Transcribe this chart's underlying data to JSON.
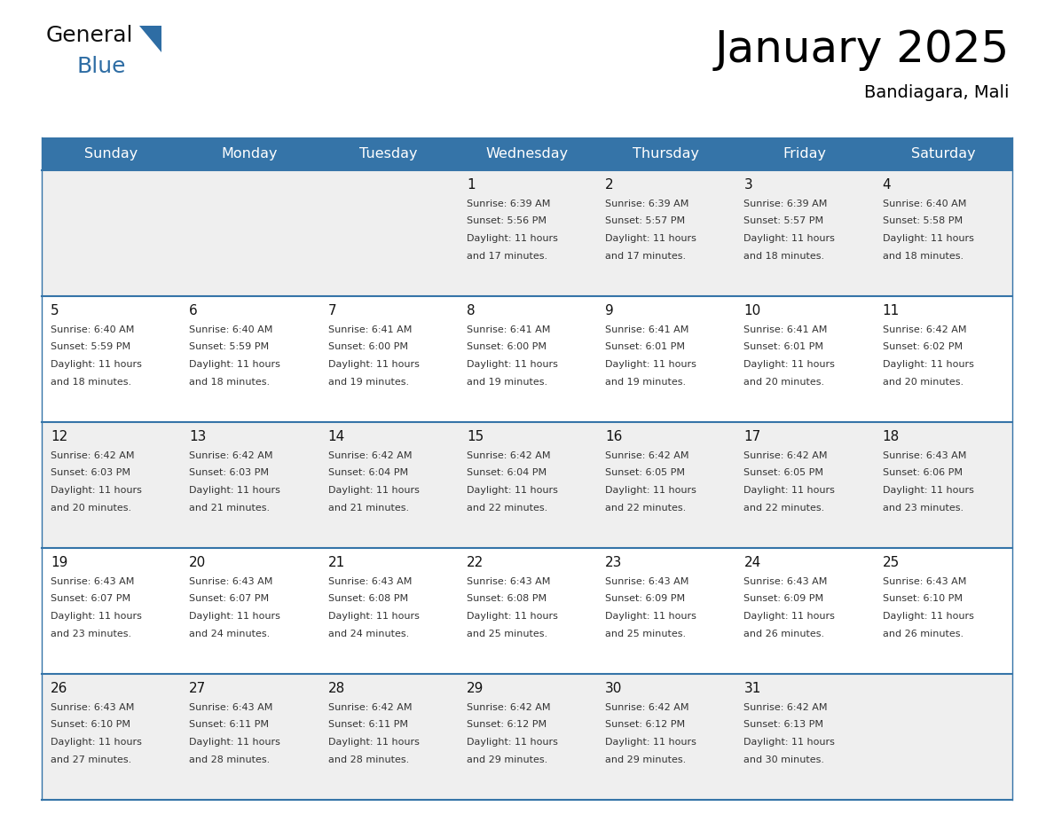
{
  "title": "January 2025",
  "subtitle": "Bandiagara, Mali",
  "header_bg": "#3574a8",
  "header_text": "#ffffff",
  "days_of_week": [
    "Sunday",
    "Monday",
    "Tuesday",
    "Wednesday",
    "Thursday",
    "Friday",
    "Saturday"
  ],
  "row_bg_odd": "#efefef",
  "row_bg_even": "#ffffff",
  "divider_color": "#3574a8",
  "text_color": "#333333",
  "day_number_color": "#111111",
  "calendar": [
    [
      {
        "day": "",
        "sunrise": "",
        "sunset": "",
        "daylight_h": "",
        "daylight_m": ""
      },
      {
        "day": "",
        "sunrise": "",
        "sunset": "",
        "daylight_h": "",
        "daylight_m": ""
      },
      {
        "day": "",
        "sunrise": "",
        "sunset": "",
        "daylight_h": "",
        "daylight_m": ""
      },
      {
        "day": "1",
        "sunrise": "6:39 AM",
        "sunset": "5:56 PM",
        "daylight_h": "11 hours",
        "daylight_m": "17 minutes"
      },
      {
        "day": "2",
        "sunrise": "6:39 AM",
        "sunset": "5:57 PM",
        "daylight_h": "11 hours",
        "daylight_m": "17 minutes"
      },
      {
        "day": "3",
        "sunrise": "6:39 AM",
        "sunset": "5:57 PM",
        "daylight_h": "11 hours",
        "daylight_m": "18 minutes"
      },
      {
        "day": "4",
        "sunrise": "6:40 AM",
        "sunset": "5:58 PM",
        "daylight_h": "11 hours",
        "daylight_m": "18 minutes"
      }
    ],
    [
      {
        "day": "5",
        "sunrise": "6:40 AM",
        "sunset": "5:59 PM",
        "daylight_h": "11 hours",
        "daylight_m": "18 minutes"
      },
      {
        "day": "6",
        "sunrise": "6:40 AM",
        "sunset": "5:59 PM",
        "daylight_h": "11 hours",
        "daylight_m": "18 minutes"
      },
      {
        "day": "7",
        "sunrise": "6:41 AM",
        "sunset": "6:00 PM",
        "daylight_h": "11 hours",
        "daylight_m": "19 minutes"
      },
      {
        "day": "8",
        "sunrise": "6:41 AM",
        "sunset": "6:00 PM",
        "daylight_h": "11 hours",
        "daylight_m": "19 minutes"
      },
      {
        "day": "9",
        "sunrise": "6:41 AM",
        "sunset": "6:01 PM",
        "daylight_h": "11 hours",
        "daylight_m": "19 minutes"
      },
      {
        "day": "10",
        "sunrise": "6:41 AM",
        "sunset": "6:01 PM",
        "daylight_h": "11 hours",
        "daylight_m": "20 minutes"
      },
      {
        "day": "11",
        "sunrise": "6:42 AM",
        "sunset": "6:02 PM",
        "daylight_h": "11 hours",
        "daylight_m": "20 minutes"
      }
    ],
    [
      {
        "day": "12",
        "sunrise": "6:42 AM",
        "sunset": "6:03 PM",
        "daylight_h": "11 hours",
        "daylight_m": "20 minutes"
      },
      {
        "day": "13",
        "sunrise": "6:42 AM",
        "sunset": "6:03 PM",
        "daylight_h": "11 hours",
        "daylight_m": "21 minutes"
      },
      {
        "day": "14",
        "sunrise": "6:42 AM",
        "sunset": "6:04 PM",
        "daylight_h": "11 hours",
        "daylight_m": "21 minutes"
      },
      {
        "day": "15",
        "sunrise": "6:42 AM",
        "sunset": "6:04 PM",
        "daylight_h": "11 hours",
        "daylight_m": "22 minutes"
      },
      {
        "day": "16",
        "sunrise": "6:42 AM",
        "sunset": "6:05 PM",
        "daylight_h": "11 hours",
        "daylight_m": "22 minutes"
      },
      {
        "day": "17",
        "sunrise": "6:42 AM",
        "sunset": "6:05 PM",
        "daylight_h": "11 hours",
        "daylight_m": "22 minutes"
      },
      {
        "day": "18",
        "sunrise": "6:43 AM",
        "sunset": "6:06 PM",
        "daylight_h": "11 hours",
        "daylight_m": "23 minutes"
      }
    ],
    [
      {
        "day": "19",
        "sunrise": "6:43 AM",
        "sunset": "6:07 PM",
        "daylight_h": "11 hours",
        "daylight_m": "23 minutes"
      },
      {
        "day": "20",
        "sunrise": "6:43 AM",
        "sunset": "6:07 PM",
        "daylight_h": "11 hours",
        "daylight_m": "24 minutes"
      },
      {
        "day": "21",
        "sunrise": "6:43 AM",
        "sunset": "6:08 PM",
        "daylight_h": "11 hours",
        "daylight_m": "24 minutes"
      },
      {
        "day": "22",
        "sunrise": "6:43 AM",
        "sunset": "6:08 PM",
        "daylight_h": "11 hours",
        "daylight_m": "25 minutes"
      },
      {
        "day": "23",
        "sunrise": "6:43 AM",
        "sunset": "6:09 PM",
        "daylight_h": "11 hours",
        "daylight_m": "25 minutes"
      },
      {
        "day": "24",
        "sunrise": "6:43 AM",
        "sunset": "6:09 PM",
        "daylight_h": "11 hours",
        "daylight_m": "26 minutes"
      },
      {
        "day": "25",
        "sunrise": "6:43 AM",
        "sunset": "6:10 PM",
        "daylight_h": "11 hours",
        "daylight_m": "26 minutes"
      }
    ],
    [
      {
        "day": "26",
        "sunrise": "6:43 AM",
        "sunset": "6:10 PM",
        "daylight_h": "11 hours",
        "daylight_m": "27 minutes"
      },
      {
        "day": "27",
        "sunrise": "6:43 AM",
        "sunset": "6:11 PM",
        "daylight_h": "11 hours",
        "daylight_m": "28 minutes"
      },
      {
        "day": "28",
        "sunrise": "6:42 AM",
        "sunset": "6:11 PM",
        "daylight_h": "11 hours",
        "daylight_m": "28 minutes"
      },
      {
        "day": "29",
        "sunrise": "6:42 AM",
        "sunset": "6:12 PM",
        "daylight_h": "11 hours",
        "daylight_m": "29 minutes"
      },
      {
        "day": "30",
        "sunrise": "6:42 AM",
        "sunset": "6:12 PM",
        "daylight_h": "11 hours",
        "daylight_m": "29 minutes"
      },
      {
        "day": "31",
        "sunrise": "6:42 AM",
        "sunset": "6:13 PM",
        "daylight_h": "11 hours",
        "daylight_m": "30 minutes"
      },
      {
        "day": "",
        "sunrise": "",
        "sunset": "",
        "daylight_h": "",
        "daylight_m": ""
      }
    ]
  ],
  "logo_general_color": "#111111",
  "logo_blue_color": "#2e6da4",
  "logo_triangle_color": "#2e6da4"
}
